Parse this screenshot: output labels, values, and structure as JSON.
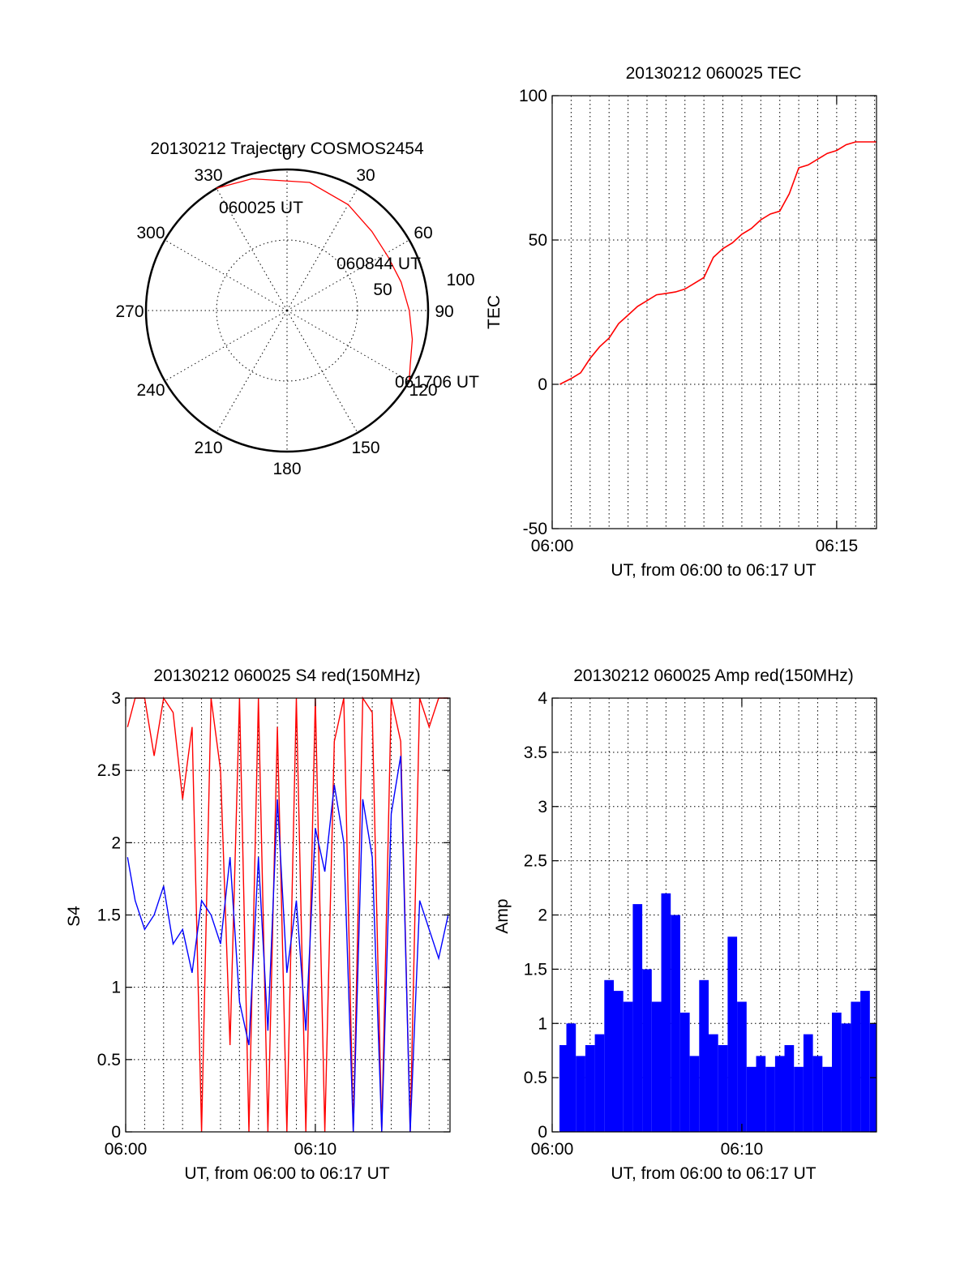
{
  "colors": {
    "red": "#ff0000",
    "blue": "#0000ff",
    "black": "#000000"
  },
  "chart_data": [
    {
      "id": "polar",
      "type": "polar",
      "title": "20130212 Trajectory COSMOS2454",
      "azimuth_labels": [
        "0",
        "30",
        "60",
        "90",
        "120",
        "150",
        "180",
        "210",
        "240",
        "270",
        "300",
        "330"
      ],
      "radial_labels": [
        "50",
        "100"
      ],
      "track": {
        "points": [
          {
            "az": 330,
            "el": 0
          },
          {
            "az": 345,
            "el": 3
          },
          {
            "az": 10,
            "el": 7
          },
          {
            "az": 30,
            "el": 12
          },
          {
            "az": 47,
            "el": 16
          },
          {
            "az": 62,
            "el": 17
          },
          {
            "az": 76,
            "el": 15
          },
          {
            "az": 90,
            "el": 12
          },
          {
            "az": 103,
            "el": 8
          },
          {
            "az": 114,
            "el": 4
          },
          {
            "az": 120,
            "el": 0
          }
        ],
        "labels": [
          "060025 UT",
          "060844 UT",
          "061706 UT"
        ]
      }
    },
    {
      "id": "tec",
      "type": "line",
      "title": "20130212 060025 TEC",
      "xlabel": "UT, from 06:00 to 06:17 UT",
      "ylabel": "TEC",
      "xlim": [
        0,
        17.1
      ],
      "ylim": [
        -50,
        100
      ],
      "xticks": [
        {
          "v": 0,
          "label": "06:00"
        },
        {
          "v": 15,
          "label": "06:15"
        }
      ],
      "yticks": [
        {
          "v": -50,
          "label": "-50"
        },
        {
          "v": 0,
          "label": "0"
        },
        {
          "v": 50,
          "label": "50"
        },
        {
          "v": 100,
          "label": "100"
        }
      ],
      "series": [
        {
          "color": "red",
          "x": [
            0.4,
            1.0,
            1.5,
            2.0,
            2.5,
            3.0,
            3.5,
            4.0,
            4.5,
            5.0,
            5.5,
            6.0,
            6.5,
            7.0,
            7.5,
            8.0,
            8.5,
            9.0,
            9.5,
            10.0,
            10.5,
            11.0,
            11.5,
            12.0,
            12.5,
            13.0,
            13.5,
            14.0,
            14.5,
            15.0,
            15.5,
            16.0,
            16.5,
            17.1
          ],
          "y": [
            0,
            2,
            4,
            9,
            13,
            16,
            21,
            24,
            27,
            29,
            31,
            31.5,
            32,
            33,
            35,
            37,
            44,
            47,
            49,
            52,
            54,
            57,
            59,
            60,
            66,
            75,
            76,
            78,
            80,
            81,
            83,
            84,
            84,
            84
          ]
        }
      ]
    },
    {
      "id": "s4",
      "type": "line",
      "title": "20130212 060025 S4 red(150MHz)",
      "xlabel": "UT, from 06:00 to 06:17 UT",
      "ylabel": "S4",
      "xlim": [
        0,
        17.1
      ],
      "ylim": [
        0,
        3
      ],
      "xticks": [
        {
          "v": 0,
          "label": "06:00"
        },
        {
          "v": 10,
          "label": "06:10"
        }
      ],
      "yticks": [
        {
          "v": 0,
          "label": "0"
        },
        {
          "v": 0.5,
          "label": "0.5"
        },
        {
          "v": 1,
          "label": "1"
        },
        {
          "v": 1.5,
          "label": "1.5"
        },
        {
          "v": 2,
          "label": "2"
        },
        {
          "v": 2.5,
          "label": "2.5"
        },
        {
          "v": 3,
          "label": "3"
        }
      ],
      "series": [
        {
          "color": "red",
          "x": [
            0.1,
            0.5,
            1.0,
            1.5,
            2.0,
            2.5,
            3.0,
            3.5,
            4.0,
            4.5,
            5.0,
            5.5,
            6.0,
            6.5,
            7.0,
            7.5,
            8.0,
            8.5,
            9.0,
            9.5,
            10.0,
            10.5,
            11.0,
            11.5,
            12.0,
            12.5,
            13.0,
            13.5,
            14.0,
            14.5,
            15.0,
            15.5,
            16.0,
            16.5,
            17.0
          ],
          "y": [
            2.8,
            3.0,
            3.0,
            2.6,
            3.0,
            2.9,
            2.3,
            2.8,
            0,
            3.0,
            2.5,
            0.6,
            3.0,
            0,
            3.0,
            0,
            2.8,
            0,
            3.0,
            0,
            3.0,
            0,
            2.7,
            3.0,
            0,
            3.0,
            2.9,
            0,
            3.0,
            2.7,
            0,
            3.0,
            2.8,
            3.0,
            3.0
          ]
        },
        {
          "color": "blue",
          "x": [
            0.1,
            0.5,
            1.0,
            1.5,
            2.0,
            2.5,
            3.0,
            3.5,
            4.0,
            4.5,
            5.0,
            5.5,
            6.0,
            6.5,
            7.0,
            7.5,
            8.0,
            8.5,
            9.0,
            9.5,
            10.0,
            10.5,
            11.0,
            11.5,
            12.0,
            12.5,
            13.0,
            13.5,
            14.0,
            14.5,
            15.0,
            15.5,
            16.0,
            16.5,
            17.0
          ],
          "y": [
            1.9,
            1.6,
            1.4,
            1.5,
            1.7,
            1.3,
            1.4,
            1.1,
            1.6,
            1.5,
            1.3,
            1.9,
            0.9,
            0.6,
            1.9,
            0.7,
            2.3,
            1.1,
            1.6,
            0.7,
            2.1,
            1.8,
            2.4,
            2.0,
            0,
            2.3,
            1.9,
            0,
            2.2,
            2.6,
            0,
            1.6,
            1.4,
            1.2,
            1.5
          ]
        }
      ]
    },
    {
      "id": "amp",
      "type": "bar",
      "title": "20130212 060025 Amp red(150MHz)",
      "xlabel": "UT, from 06:00 to 06:17 UT",
      "ylabel": "Amp",
      "xlim": [
        0,
        17.1
      ],
      "ylim": [
        0,
        4
      ],
      "xticks": [
        {
          "v": 0,
          "label": "06:00"
        },
        {
          "v": 10,
          "label": "06:10"
        }
      ],
      "yticks": [
        {
          "v": 0,
          "label": "0"
        },
        {
          "v": 0.5,
          "label": "0.5"
        },
        {
          "v": 1,
          "label": "1"
        },
        {
          "v": 1.5,
          "label": "1.5"
        },
        {
          "v": 2,
          "label": "2"
        },
        {
          "v": 2.5,
          "label": "2.5"
        },
        {
          "v": 3,
          "label": "3"
        },
        {
          "v": 3.5,
          "label": "3.5"
        },
        {
          "v": 4,
          "label": "4"
        }
      ],
      "series": [
        {
          "color": "blue",
          "x": [
            0.1,
            0.5,
            1.0,
            1.5,
            2.0,
            2.5,
            3.0,
            3.5,
            4.0,
            4.5,
            5.0,
            5.5,
            6.0,
            6.5,
            7.0,
            7.5,
            8.0,
            8.5,
            9.0,
            9.5,
            10.0,
            10.5,
            11.0,
            11.5,
            12.0,
            12.5,
            13.0,
            13.5,
            14.0,
            14.5,
            15.0,
            15.5,
            16.0,
            16.5,
            17.0
          ],
          "y": [
            0.7,
            0.8,
            1.0,
            0.7,
            0.8,
            0.9,
            1.4,
            1.3,
            1.2,
            2.1,
            1.5,
            1.2,
            2.2,
            2.0,
            1.1,
            0.7,
            1.4,
            0.9,
            0.8,
            1.8,
            1.2,
            0.6,
            0.7,
            0.6,
            0.7,
            0.8,
            0.6,
            0.9,
            0.7,
            0.6,
            1.1,
            1.0,
            1.2,
            1.3,
            1.0
          ]
        }
      ]
    }
  ]
}
